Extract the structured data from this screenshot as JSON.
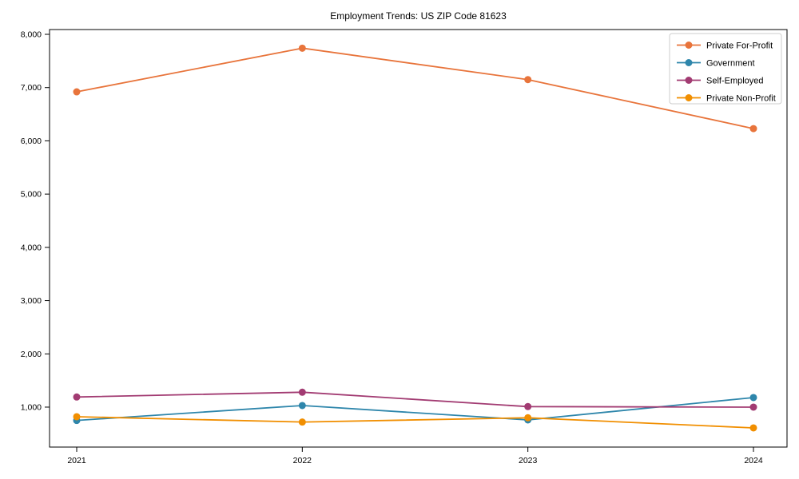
{
  "chart_data": {
    "type": "line",
    "title": "Employment Trends: US ZIP Code 81623",
    "xlabel": "",
    "ylabel": "",
    "x": [
      "2021",
      "2022",
      "2023",
      "2024"
    ],
    "series": [
      {
        "name": "Private For-Profit",
        "color": "#e8743b",
        "values": [
          6920,
          7740,
          7150,
          6230
        ]
      },
      {
        "name": "Government",
        "color": "#2e86ab",
        "values": [
          750,
          1030,
          760,
          1180
        ]
      },
      {
        "name": "Self-Employed",
        "color": "#a23b72",
        "values": [
          1190,
          1280,
          1010,
          1000
        ]
      },
      {
        "name": "Private Non-Profit",
        "color": "#f18f01",
        "values": [
          820,
          720,
          800,
          610
        ]
      }
    ],
    "yticks": [
      1000,
      2000,
      3000,
      4000,
      5000,
      6000,
      7000,
      8000
    ],
    "ytick_labels": [
      "1,000",
      "2,000",
      "3,000",
      "4,000",
      "5,000",
      "6,000",
      "7,000",
      "8,000"
    ],
    "ylim": [
      250,
      8090
    ],
    "grid": false,
    "legend_position": "upper right",
    "marker": "circle",
    "axis_color": "#000000",
    "legend_border_color": "#cccccc",
    "legend_background": "#ffffff"
  }
}
